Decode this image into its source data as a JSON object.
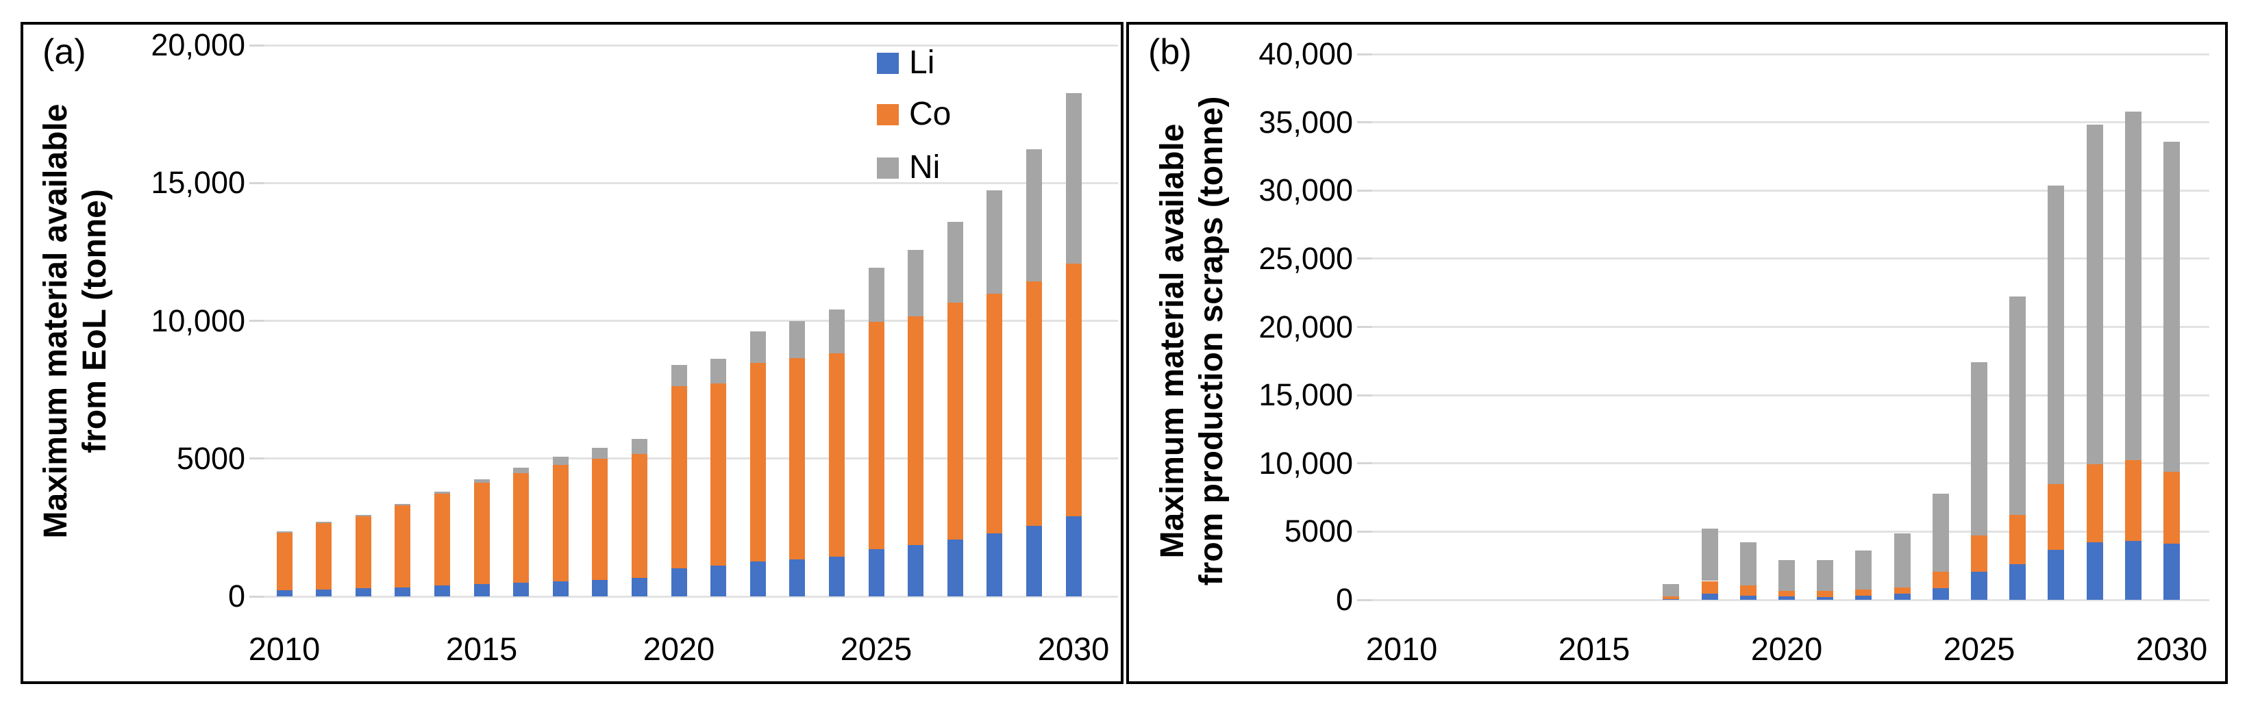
{
  "figure": {
    "panels": [
      {
        "label": "(a)",
        "y_axis_title": [
          "Maximum material available",
          "from EoL (tonne)"
        ],
        "y_tick_labels": [
          "20,000",
          "15,000",
          "10,000",
          "5000",
          "0"
        ],
        "x_tick_labels": [
          "2010",
          "2015",
          "2020",
          "2025",
          "2030"
        ]
      },
      {
        "label": "(b)",
        "y_axis_title": [
          "Maximum material available",
          "from production scraps (tonne)"
        ],
        "y_tick_labels": [
          "40,000",
          "35,000",
          "30,000",
          "25,000",
          "20,000",
          "15,000",
          "10,000",
          "5000",
          "0"
        ],
        "x_tick_labels": [
          "2010",
          "2015",
          "2020",
          "2025",
          "2030"
        ]
      }
    ],
    "legend": {
      "items": [
        {
          "label": "Li",
          "color": "#4472C4"
        },
        {
          "label": "Co",
          "color": "#ED7D31"
        },
        {
          "label": "Ni",
          "color": "#A5A5A5"
        }
      ]
    }
  },
  "colors": {
    "li": "#4472C4",
    "co": "#ED7D31",
    "ni": "#A5A5A5",
    "gridline": "#E2E2E2",
    "border": "#000000",
    "background": "#FFFFFF"
  },
  "chart_data": [
    {
      "type": "bar",
      "stacked": true,
      "title": "(a)",
      "ylabel": "Maximum material available from EoL (tonne)",
      "xlabel": "",
      "ylim": [
        0,
        20000
      ],
      "ytick_step": 5000,
      "grid": true,
      "legend_position": "inside-top-right",
      "categories": [
        2010,
        2011,
        2012,
        2013,
        2014,
        2015,
        2016,
        2017,
        2018,
        2019,
        2020,
        2021,
        2022,
        2023,
        2024,
        2025,
        2026,
        2027,
        2028,
        2029,
        2030
      ],
      "series": [
        {
          "name": "Li",
          "color": "#4472C4",
          "values": [
            220,
            250,
            290,
            330,
            390,
            440,
            495,
            555,
            600,
            660,
            1010,
            1115,
            1275,
            1335,
            1450,
            1715,
            1865,
            2070,
            2280,
            2550,
            2900
          ]
        },
        {
          "name": "Co",
          "color": "#ED7D31",
          "values": [
            2100,
            2400,
            2620,
            2975,
            3345,
            3690,
            3985,
            4215,
            4400,
            4520,
            6610,
            6610,
            7185,
            7305,
            7380,
            8250,
            8295,
            8600,
            8700,
            8870,
            9165
          ]
        },
        {
          "name": "Ni",
          "color": "#A5A5A5",
          "values": [
            40,
            50,
            55,
            55,
            65,
            125,
            190,
            295,
            390,
            540,
            780,
            885,
            1150,
            1340,
            1570,
            1965,
            2415,
            2920,
            3755,
            4810,
            6195
          ]
        }
      ]
    },
    {
      "type": "bar",
      "stacked": true,
      "title": "(b)",
      "ylabel": "Maximum material available from production scraps (tonne)",
      "xlabel": "",
      "ylim": [
        0,
        40000
      ],
      "ytick_step": 5000,
      "grid": true,
      "legend_position": "none",
      "categories": [
        2010,
        2011,
        2012,
        2013,
        2014,
        2015,
        2016,
        2017,
        2018,
        2019,
        2020,
        2021,
        2022,
        2023,
        2024,
        2025,
        2026,
        2027,
        2028,
        2029,
        2030
      ],
      "series": [
        {
          "name": "Li",
          "color": "#4472C4",
          "values": [
            0,
            0,
            0,
            0,
            0,
            0,
            0,
            30,
            440,
            320,
            230,
            210,
            300,
            430,
            840,
            2050,
            2610,
            3670,
            4240,
            4330,
            4130
          ]
        },
        {
          "name": "Co",
          "color": "#ED7D31",
          "values": [
            0,
            0,
            0,
            0,
            0,
            0,
            0,
            220,
            940,
            730,
            430,
            460,
            450,
            470,
            1210,
            2660,
            3590,
            4830,
            5720,
            5900,
            5280
          ]
        },
        {
          "name": "Ni",
          "color": "#A5A5A5",
          "values": [
            0,
            0,
            0,
            0,
            0,
            0,
            0,
            900,
            3820,
            3150,
            2260,
            2250,
            2850,
            3950,
            5750,
            12690,
            16050,
            21860,
            24890,
            25570,
            24190
          ]
        }
      ]
    }
  ]
}
